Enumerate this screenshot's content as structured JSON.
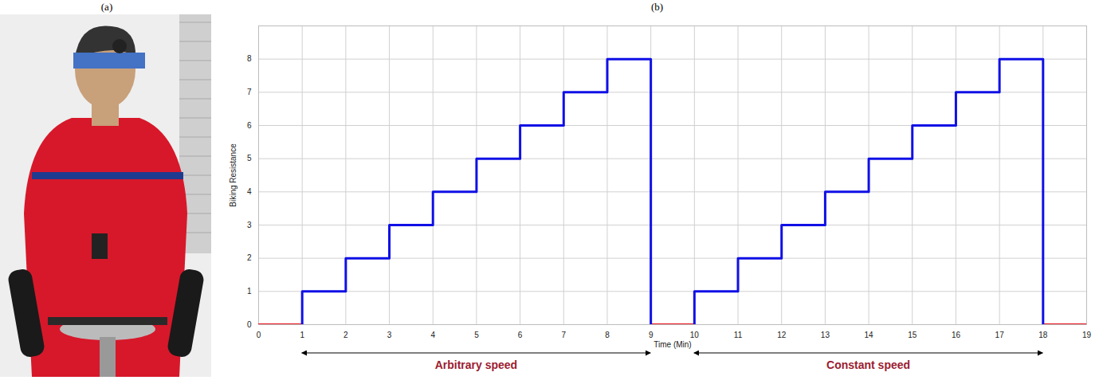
{
  "panel_labels": [
    "(a)",
    "(b)"
  ],
  "chart_data": {
    "type": "line",
    "x_label": "Time (Min)",
    "y_label": "Biking Resistance",
    "xlim": [
      0,
      19
    ],
    "xticks": [
      0,
      1,
      2,
      3,
      4,
      5,
      6,
      7,
      8,
      9,
      10,
      11,
      12,
      13,
      14,
      15,
      16,
      17,
      18,
      19
    ],
    "ylim": [
      0,
      9
    ],
    "yticks": [
      0,
      1,
      2,
      3,
      4,
      5,
      6,
      7,
      8
    ],
    "grid": true,
    "series": [
      {
        "color": "#e8141c",
        "x": [
          0,
          1,
          1,
          9,
          10,
          10,
          18,
          19
        ],
        "values": [
          0,
          0,
          null,
          0,
          0,
          null,
          0,
          0
        ]
      },
      {
        "color": "#1010e6",
        "x": [
          1,
          1,
          2,
          2,
          3,
          3,
          4,
          4,
          5,
          5,
          6,
          6,
          7,
          7,
          8,
          8,
          9,
          9,
          9,
          10,
          10,
          11,
          11,
          12,
          12,
          13,
          13,
          14,
          14,
          15,
          15,
          16,
          16,
          17,
          17,
          18,
          18
        ],
        "values": [
          0,
          1,
          1,
          2,
          2,
          3,
          3,
          4,
          4,
          5,
          5,
          6,
          6,
          7,
          7,
          8,
          8,
          0,
          null,
          0,
          1,
          1,
          2,
          2,
          3,
          3,
          4,
          4,
          5,
          5,
          6,
          6,
          7,
          7,
          8,
          8,
          0
        ]
      }
    ],
    "annotations": [
      {
        "text": "Arbitrary speed",
        "x_start": 1,
        "x_end": 9,
        "color": "#9b1b30"
      },
      {
        "text": "Constant speed",
        "x_start": 10,
        "x_end": 18,
        "color": "#9b1b30"
      }
    ]
  }
}
